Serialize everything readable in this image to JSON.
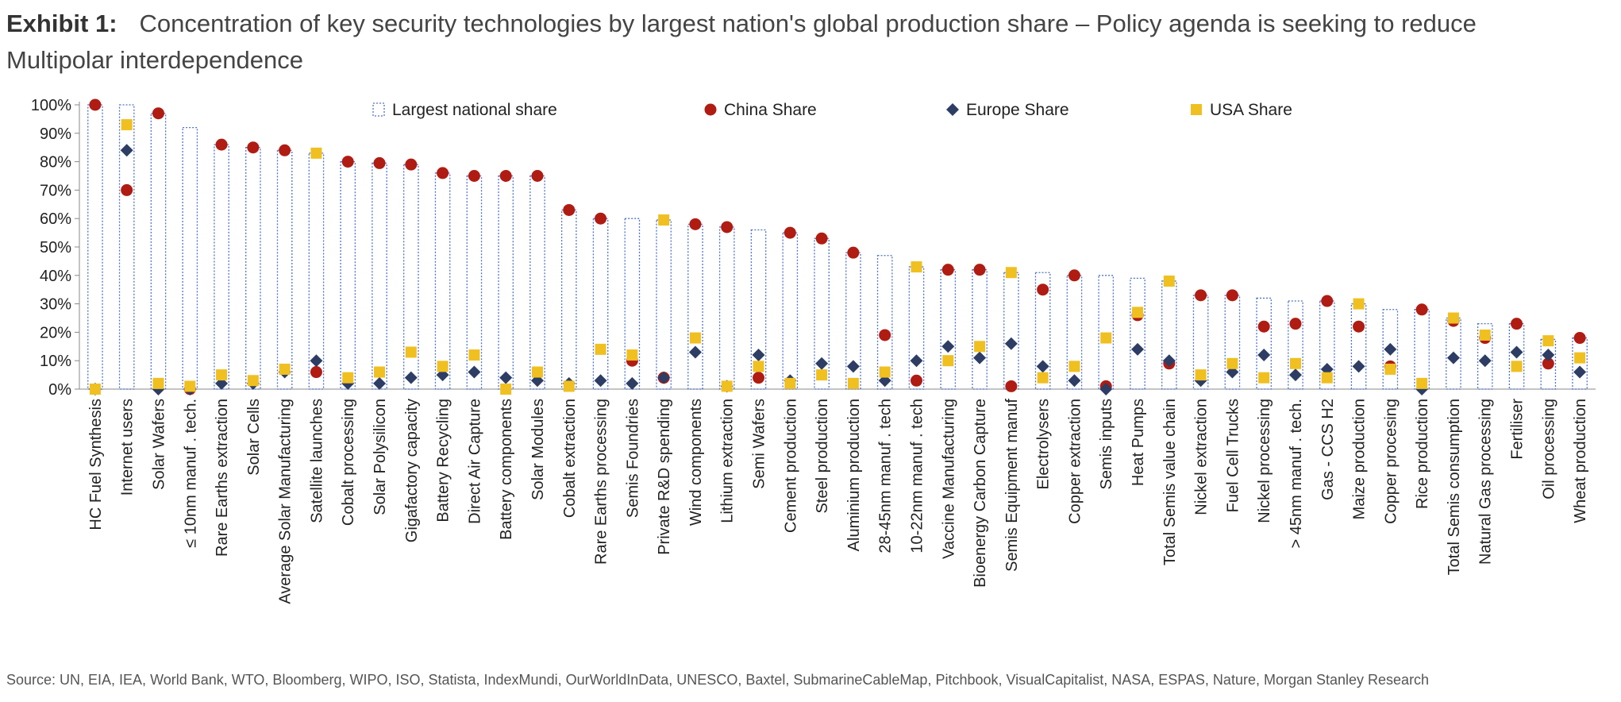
{
  "exhibit": {
    "label": "Exhibit 1:",
    "title": "Concentration of key security technologies by largest nation's global production share – Policy agenda is seeking to reduce",
    "subtitle": "Multipolar interdependence"
  },
  "source": "Source: UN, EIA, IEA, World Bank, WTO, Bloomberg, WIPO, ISO, Statista, IndexMundi, OurWorldInData, UNESCO, Baxtel, SubmarineCableMap, Pitchbook, VisualCapitalist, NASA, ESPAS, Nature, Morgan Stanley Research",
  "colors": {
    "largest": "#4f72c8",
    "china": "#b01c12",
    "europe": "#2e3d64",
    "usa": "#f0c020"
  },
  "chart_data": {
    "type": "bar",
    "ylim": [
      0,
      100
    ],
    "yticks": [
      0,
      10,
      20,
      30,
      40,
      50,
      60,
      70,
      80,
      90,
      100
    ],
    "ytick_labels": [
      "0%",
      "10%",
      "20%",
      "30%",
      "40%",
      "50%",
      "60%",
      "70%",
      "80%",
      "90%",
      "100%"
    ],
    "legend_position": "top",
    "categories": [
      "HC Fuel Synthesis",
      "Internet users",
      "Solar Wafers",
      "≤ 10nm manuf . tech.",
      "Rare Earths extraction",
      "Solar Cells",
      "Average Solar Manufacturing",
      "Satellite launches",
      "Cobalt processing",
      "Solar Polysilicon",
      "Gigafactory capacity",
      "Battery Recycling",
      "Direct Air Capture",
      "Battery components",
      "Solar Modules",
      "Cobalt extraction",
      "Rare Earths processing",
      "Semis Foundries",
      "Private R&D spending",
      "Wind components",
      "Lithium extraction",
      "Semi Wafers",
      "Cement production",
      "Steel production",
      "Aluminium production",
      "28-45nm manuf . tech",
      "10-22nm manuf . tech",
      "Vaccine Manufacturing",
      "Bioenergy Carbon Capture",
      "Semis Equipment manuf",
      "Electrolysers",
      "Copper extraction",
      "Semis inputs",
      "Heat Pumps",
      "Total Semis value chain",
      "Nickel extraction",
      "Fuel Cell Trucks",
      "Nickel processing",
      "> 45nm manuf . tech.",
      "Gas - CCS H2",
      "Maize production",
      "Copper procesing",
      "Rice production",
      "Total Semis consumption",
      "Natural Gas processing",
      "Fertiliser",
      "Oil processing",
      "Wheat production"
    ],
    "series": [
      {
        "name": "Largest national share",
        "kind": "bar",
        "values": [
          100,
          100,
          97,
          92,
          86,
          85,
          84,
          83,
          80,
          79.5,
          79,
          76,
          75,
          75,
          75,
          63,
          60,
          60,
          59.5,
          58,
          57,
          56,
          55,
          53,
          48,
          47,
          43,
          42,
          42,
          41,
          41,
          40,
          40,
          39,
          38,
          33,
          33,
          32,
          31,
          31,
          30,
          28,
          28,
          25,
          23,
          23,
          17.5,
          18
        ]
      },
      {
        "name": "China Share",
        "kind": "marker",
        "values": [
          100,
          70,
          97,
          0,
          86,
          85,
          84,
          6,
          80,
          79.5,
          79,
          76,
          75,
          75,
          75,
          63,
          60,
          10,
          4,
          58,
          57,
          4,
          55,
          53,
          48,
          19,
          3,
          42,
          42,
          1,
          35,
          40,
          1,
          26,
          9,
          33,
          33,
          22,
          23,
          31,
          22,
          8,
          28,
          24,
          18,
          23,
          9,
          18
        ]
      },
      {
        "name": "Europe Share",
        "kind": "marker",
        "values": [
          0,
          84,
          0,
          0,
          2,
          2,
          6,
          10,
          2,
          2,
          4,
          5,
          6,
          4,
          3,
          2,
          3,
          2,
          4,
          13,
          1,
          12,
          3,
          9,
          8,
          3,
          10,
          15,
          11,
          16,
          8,
          3,
          0,
          14,
          10,
          3,
          6,
          12,
          5,
          7,
          8,
          14,
          0,
          11,
          10,
          13,
          12,
          6
        ]
      },
      {
        "name": "USA Share",
        "kind": "marker",
        "values": [
          0,
          93,
          2,
          1,
          5,
          3,
          7,
          83,
          4,
          6,
          13,
          8,
          12,
          0,
          6,
          1,
          14,
          12,
          59.5,
          18,
          1,
          8,
          2,
          5,
          2,
          6,
          43,
          10,
          15,
          41,
          4,
          8,
          18,
          27,
          38,
          5,
          9,
          4,
          9,
          4,
          30,
          7,
          2,
          25,
          19,
          8,
          17,
          11
        ]
      }
    ]
  }
}
